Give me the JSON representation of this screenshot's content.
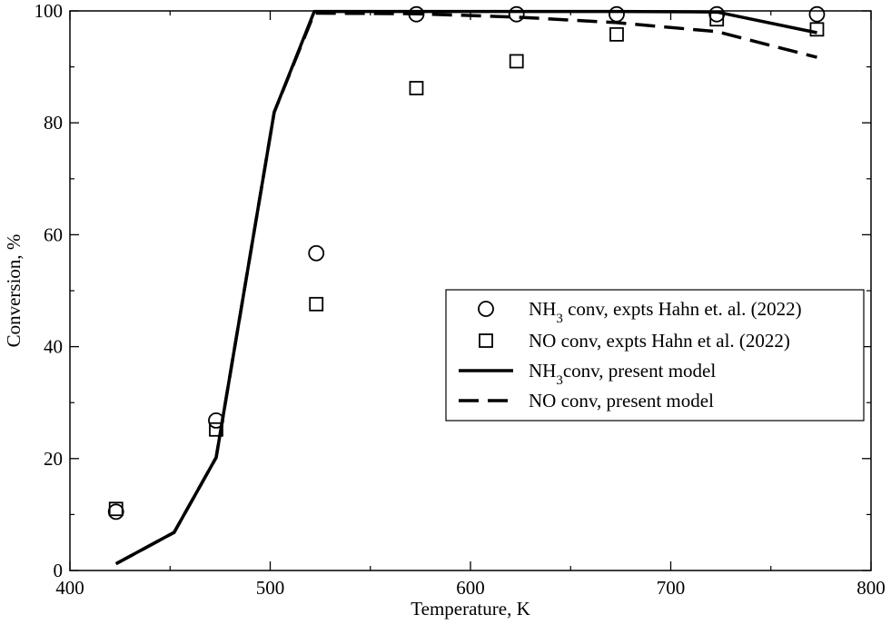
{
  "chart_data": {
    "type": "line",
    "xlabel": "Temperature, K",
    "ylabel": "Conversion, %",
    "xlim": [
      400,
      800
    ],
    "ylim": [
      0,
      100
    ],
    "x_ticks": [
      400,
      500,
      600,
      700,
      800
    ],
    "y_ticks": [
      0,
      20,
      40,
      60,
      80,
      100
    ],
    "x_tick_labels": [
      "400",
      "500",
      "600",
      "700",
      "800"
    ],
    "y_tick_labels": [
      "0",
      "20",
      "40",
      "60",
      "80",
      "100"
    ],
    "grid": false,
    "legend_placement": "center-right",
    "series": [
      {
        "name": "NH3  conv, expts Hahn et. al. (2022)",
        "legend_base": "NH",
        "legend_sub": "3",
        "legend_rest": "  conv, expts Hahn et. al. (2022)",
        "style": "marker-circle",
        "x": [
          423,
          473,
          523,
          573,
          623,
          673,
          723,
          773
        ],
        "y": [
          10.5,
          26.8,
          56.7,
          99.4,
          99.4,
          99.4,
          99.4,
          99.4
        ]
      },
      {
        "name": "NO conv, expts Hahn et al. (2022)",
        "legend_base": "NO conv, expts Hahn et al. (2022)",
        "legend_sub": "",
        "legend_rest": "",
        "style": "marker-square",
        "x": [
          423,
          473,
          523,
          573,
          623,
          673,
          723,
          773
        ],
        "y": [
          11.0,
          25.2,
          47.6,
          86.2,
          91.0,
          95.8,
          98.5,
          96.7
        ]
      },
      {
        "name": "NH3conv, present model",
        "legend_base": "NH",
        "legend_sub": "3",
        "legend_rest": "conv, present model",
        "style": "line-solid",
        "x": [
          423,
          452,
          473,
          502,
          522,
          572,
          623,
          673,
          723,
          773
        ],
        "y": [
          1.2,
          6.8,
          20.2,
          81.9,
          99.9,
          99.9,
          99.9,
          99.9,
          99.8,
          96.1
        ]
      },
      {
        "name": "NO conv, present model",
        "legend_base": "NO conv, present model",
        "legend_sub": "",
        "legend_rest": "",
        "style": "line-dashed",
        "x": [
          423,
          452,
          473,
          502,
          522,
          572,
          623,
          673,
          723,
          773
        ],
        "y": [
          1.2,
          6.8,
          20.2,
          81.9,
          99.6,
          99.5,
          98.9,
          97.9,
          96.3,
          91.7
        ]
      }
    ]
  }
}
